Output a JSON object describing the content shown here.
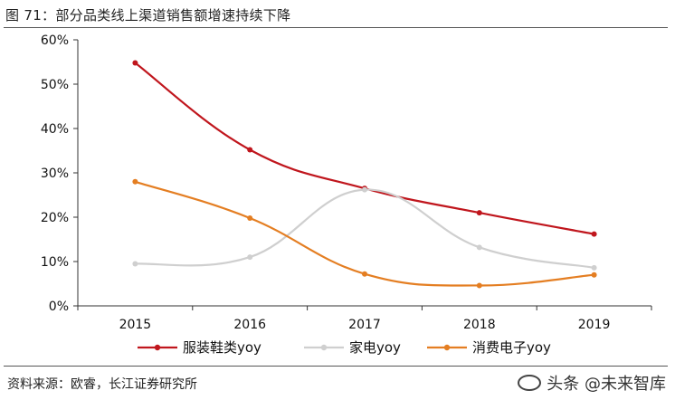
{
  "figure": {
    "title": "图 71：部分品类线上渠道销售额增速持续下降",
    "source": "资料来源：欧睿，长江证券研究所",
    "watermark": "头条 @未来智库"
  },
  "chart_data": {
    "type": "line",
    "title": "图 71：部分品类线上渠道销售额增速持续下降",
    "xlabel": "",
    "ylabel": "",
    "categories": [
      "2015",
      "2016",
      "2017",
      "2018",
      "2019"
    ],
    "ylim": [
      0,
      0.6
    ],
    "yticks": [
      0,
      0.1,
      0.2,
      0.3,
      0.4,
      0.5,
      0.6
    ],
    "ytick_labels": [
      "0%",
      "10%",
      "20%",
      "30%",
      "40%",
      "50%",
      "60%"
    ],
    "grid": false,
    "legend_position": "bottom",
    "series": [
      {
        "name": "服装鞋类yoy",
        "color": "#c0161d",
        "smooth": true,
        "values": [
          0.548,
          0.352,
          0.265,
          0.21,
          0.162
        ]
      },
      {
        "name": "家电yoy",
        "color": "#cfcfcf",
        "smooth": true,
        "values": [
          0.095,
          0.11,
          0.262,
          0.132,
          0.086
        ]
      },
      {
        "name": "消费电子yoy",
        "color": "#e47e22",
        "smooth": true,
        "values": [
          0.28,
          0.198,
          0.072,
          0.046,
          0.07
        ]
      }
    ]
  }
}
